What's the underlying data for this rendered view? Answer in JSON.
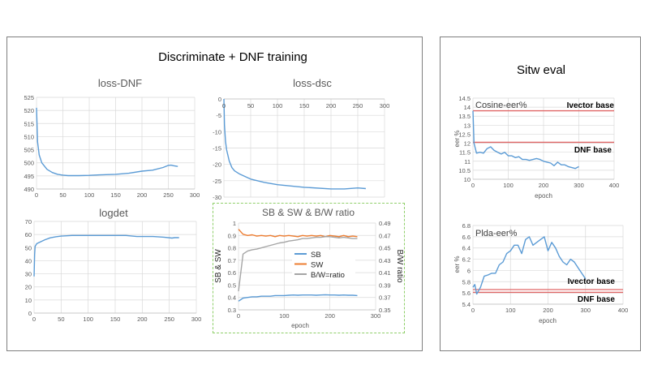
{
  "left_panel": {
    "title": "Discriminate + DNF training"
  },
  "right_panel": {
    "title": "Sitw eval"
  },
  "chart_data": [
    {
      "type": "line",
      "title": "loss-DNF",
      "xlabel": "",
      "ylabel": "",
      "xlim": [
        0,
        300
      ],
      "ylim": [
        490,
        525
      ],
      "grid": true,
      "x_axis_position": "bottom",
      "xticks": [
        "0",
        "50",
        "100",
        "150",
        "200",
        "250",
        "300"
      ],
      "yticks": [
        "490",
        "495",
        "500",
        "505",
        "510",
        "515",
        "520",
        "525"
      ],
      "series": [
        {
          "color": "#5b9bd5",
          "axis": "left",
          "x": [
            0,
            2,
            5,
            10,
            20,
            30,
            40,
            50,
            60,
            80,
            100,
            120,
            150,
            175,
            200,
            220,
            240,
            250,
            255,
            260,
            268
          ],
          "y": [
            521,
            508,
            503,
            500,
            497.5,
            496.3,
            495.6,
            495.3,
            495.1,
            495.1,
            495.2,
            495.4,
            495.6,
            496,
            496.8,
            497.2,
            498.2,
            499,
            499.1,
            498.9,
            498.6
          ]
        }
      ]
    },
    {
      "type": "line",
      "title": "loss-dsc",
      "xlabel": "",
      "ylabel": "",
      "xlim": [
        0,
        300
      ],
      "ylim": [
        -30,
        0
      ],
      "grid": true,
      "x_axis_position": "top",
      "xticks": [
        "0",
        "50",
        "100",
        "150",
        "200",
        "250",
        "300"
      ],
      "yticks": [
        "-30",
        "-25",
        "-20",
        "-15",
        "-10",
        "-5",
        "0"
      ],
      "series": [
        {
          "color": "#5b9bd5",
          "axis": "left",
          "x": [
            0,
            1,
            3,
            5,
            10,
            15,
            20,
            30,
            50,
            75,
            100,
            150,
            200,
            225,
            250,
            265
          ],
          "y": [
            0,
            -8,
            -13,
            -15.5,
            -19,
            -21,
            -22,
            -23,
            -24.5,
            -25.5,
            -26.2,
            -27,
            -27.5,
            -27.5,
            -27.2,
            -27.4
          ]
        }
      ]
    },
    {
      "type": "line",
      "title": "logdet",
      "xlabel": "",
      "ylabel": "",
      "xlim": [
        0,
        300
      ],
      "ylim": [
        0,
        70
      ],
      "grid": true,
      "x_axis_position": "bottom",
      "xticks": [
        "0",
        "50",
        "100",
        "150",
        "200",
        "250",
        "300"
      ],
      "yticks": [
        "0",
        "10",
        "20",
        "30",
        "40",
        "50",
        "60",
        "70"
      ],
      "series": [
        {
          "color": "#5b9bd5",
          "axis": "left",
          "x": [
            0,
            1,
            2,
            5,
            10,
            20,
            30,
            40,
            50,
            70,
            100,
            170,
            190,
            220,
            240,
            255,
            260,
            268
          ],
          "y": [
            28,
            45,
            51,
            53,
            54,
            56,
            57.5,
            58.3,
            58.8,
            59.3,
            59.3,
            59.3,
            58.5,
            58.5,
            58,
            57.3,
            57.6,
            57.6
          ]
        }
      ]
    },
    {
      "type": "line",
      "title": "SB & SW & B/W ratio",
      "xlabel": "epoch",
      "ylabel": "SB & SW",
      "y2label": "B/W ratio",
      "xlim": [
        0,
        300
      ],
      "ylim": [
        0.3,
        1
      ],
      "y2lim": [
        0.35,
        0.49
      ],
      "grid": true,
      "x_axis_position": "bottom",
      "legend": "center",
      "xticks": [
        "0",
        "100",
        "200",
        "300"
      ],
      "yticks": [
        "0.3",
        "0.4",
        "0.5",
        "0.6",
        "0.7",
        "0.8",
        "0.9",
        "1"
      ],
      "y2ticks": [
        "0.35",
        "0.37",
        "0.39",
        "0.41",
        "0.43",
        "0.45",
        "0.47",
        "0.49"
      ],
      "series": [
        {
          "name": "SB",
          "color": "#5b9bd5",
          "axis": "left",
          "x": [
            0,
            10,
            20,
            30,
            40,
            50,
            60,
            70,
            80,
            90,
            100,
            110,
            120,
            130,
            140,
            150,
            160,
            170,
            180,
            190,
            200,
            210,
            220,
            230,
            240,
            250,
            260
          ],
          "y": [
            0.37,
            0.395,
            0.4,
            0.405,
            0.405,
            0.41,
            0.41,
            0.41,
            0.415,
            0.415,
            0.415,
            0.418,
            0.42,
            0.418,
            0.42,
            0.42,
            0.42,
            0.418,
            0.42,
            0.422,
            0.42,
            0.42,
            0.418,
            0.42,
            0.418,
            0.418,
            0.415
          ]
        },
        {
          "name": "SW",
          "color": "#ed7d31",
          "axis": "left",
          "x": [
            0,
            10,
            20,
            30,
            40,
            50,
            60,
            70,
            80,
            90,
            100,
            110,
            120,
            130,
            140,
            150,
            160,
            170,
            180,
            190,
            200,
            210,
            220,
            230,
            240,
            250,
            260
          ],
          "y": [
            0.95,
            0.91,
            0.9,
            0.905,
            0.895,
            0.9,
            0.895,
            0.9,
            0.89,
            0.9,
            0.895,
            0.9,
            0.895,
            0.89,
            0.9,
            0.895,
            0.9,
            0.895,
            0.9,
            0.89,
            0.9,
            0.895,
            0.89,
            0.9,
            0.89,
            0.895,
            0.89
          ]
        },
        {
          "name": "B/W=ratio",
          "color": "#a5a5a5",
          "axis": "right",
          "x": [
            0,
            10,
            20,
            30,
            40,
            50,
            60,
            70,
            80,
            90,
            100,
            110,
            120,
            130,
            140,
            150,
            160,
            170,
            180,
            190,
            200,
            210,
            220,
            230,
            240,
            250,
            260
          ],
          "y": [
            0.38,
            0.44,
            0.445,
            0.447,
            0.448,
            0.45,
            0.452,
            0.454,
            0.456,
            0.458,
            0.459,
            0.461,
            0.462,
            0.463,
            0.465,
            0.465,
            0.466,
            0.467,
            0.467,
            0.468,
            0.468,
            0.467,
            0.466,
            0.467,
            0.466,
            0.465,
            0.465
          ]
        }
      ]
    },
    {
      "type": "line",
      "title": "Cosine-eer%",
      "xlabel": "epoch",
      "ylabel": "eer %",
      "xlim": [
        0,
        400
      ],
      "ylim": [
        10,
        14.5
      ],
      "grid": true,
      "x_axis_position": "bottom",
      "xticks": [
        "0",
        "100",
        "200",
        "300",
        "400"
      ],
      "yticks": [
        "10",
        "10.5",
        "11",
        "11.5",
        "12",
        "12.5",
        "13",
        "13.5",
        "14",
        "14.5"
      ],
      "series": [
        {
          "color": "#5b9bd5",
          "axis": "left",
          "x": [
            0,
            3,
            10,
            20,
            30,
            40,
            50,
            60,
            70,
            80,
            90,
            100,
            110,
            120,
            130,
            140,
            150,
            160,
            170,
            180,
            190,
            200,
            210,
            220,
            230,
            240,
            250,
            260,
            270,
            280,
            290,
            300
          ],
          "y": [
            13.8,
            12,
            11.45,
            11.5,
            11.45,
            11.7,
            11.8,
            11.6,
            11.5,
            11.4,
            11.5,
            11.3,
            11.3,
            11.2,
            11.25,
            11.1,
            11.1,
            11.05,
            11.1,
            11.15,
            11.1,
            11.0,
            10.95,
            10.9,
            10.75,
            10.95,
            10.8,
            10.8,
            10.7,
            10.65,
            10.6,
            10.7
          ]
        }
      ],
      "reference_lines": [
        {
          "label": "Ivector base",
          "value": 13.8,
          "color": "#e06666"
        },
        {
          "label": "DNF base",
          "value": 12.05,
          "color": "#e06666"
        }
      ]
    },
    {
      "type": "line",
      "title": "Plda-eer%",
      "xlabel": "epoch",
      "ylabel": "eer %",
      "xlim": [
        0,
        400
      ],
      "ylim": [
        5.4,
        6.8
      ],
      "grid": true,
      "x_axis_position": "bottom",
      "xticks": [
        "0",
        "100",
        "200",
        "300",
        "400"
      ],
      "yticks": [
        "5.4",
        "5.6",
        "5.8",
        "6",
        "6.2",
        "6.4",
        "6.6",
        "6.8"
      ],
      "series": [
        {
          "color": "#5b9bd5",
          "axis": "left",
          "x": [
            0,
            5,
            10,
            20,
            30,
            40,
            50,
            60,
            70,
            80,
            90,
            100,
            110,
            120,
            130,
            140,
            150,
            160,
            170,
            180,
            190,
            200,
            210,
            220,
            230,
            240,
            250,
            260,
            270,
            280,
            290,
            300
          ],
          "y": [
            5.7,
            5.75,
            5.58,
            5.7,
            5.9,
            5.92,
            5.95,
            5.95,
            6.1,
            6.15,
            6.3,
            6.35,
            6.45,
            6.45,
            6.3,
            6.55,
            6.6,
            6.45,
            6.5,
            6.55,
            6.6,
            6.35,
            6.5,
            6.4,
            6.25,
            6.15,
            6.1,
            6.2,
            6.15,
            6.05,
            5.95,
            5.85
          ]
        }
      ],
      "reference_lines": [
        {
          "label": "Ivector base",
          "value": 5.66,
          "color": "#e06666"
        },
        {
          "label": "DNF base",
          "value": 5.61,
          "color": "#e06666"
        }
      ]
    }
  ]
}
